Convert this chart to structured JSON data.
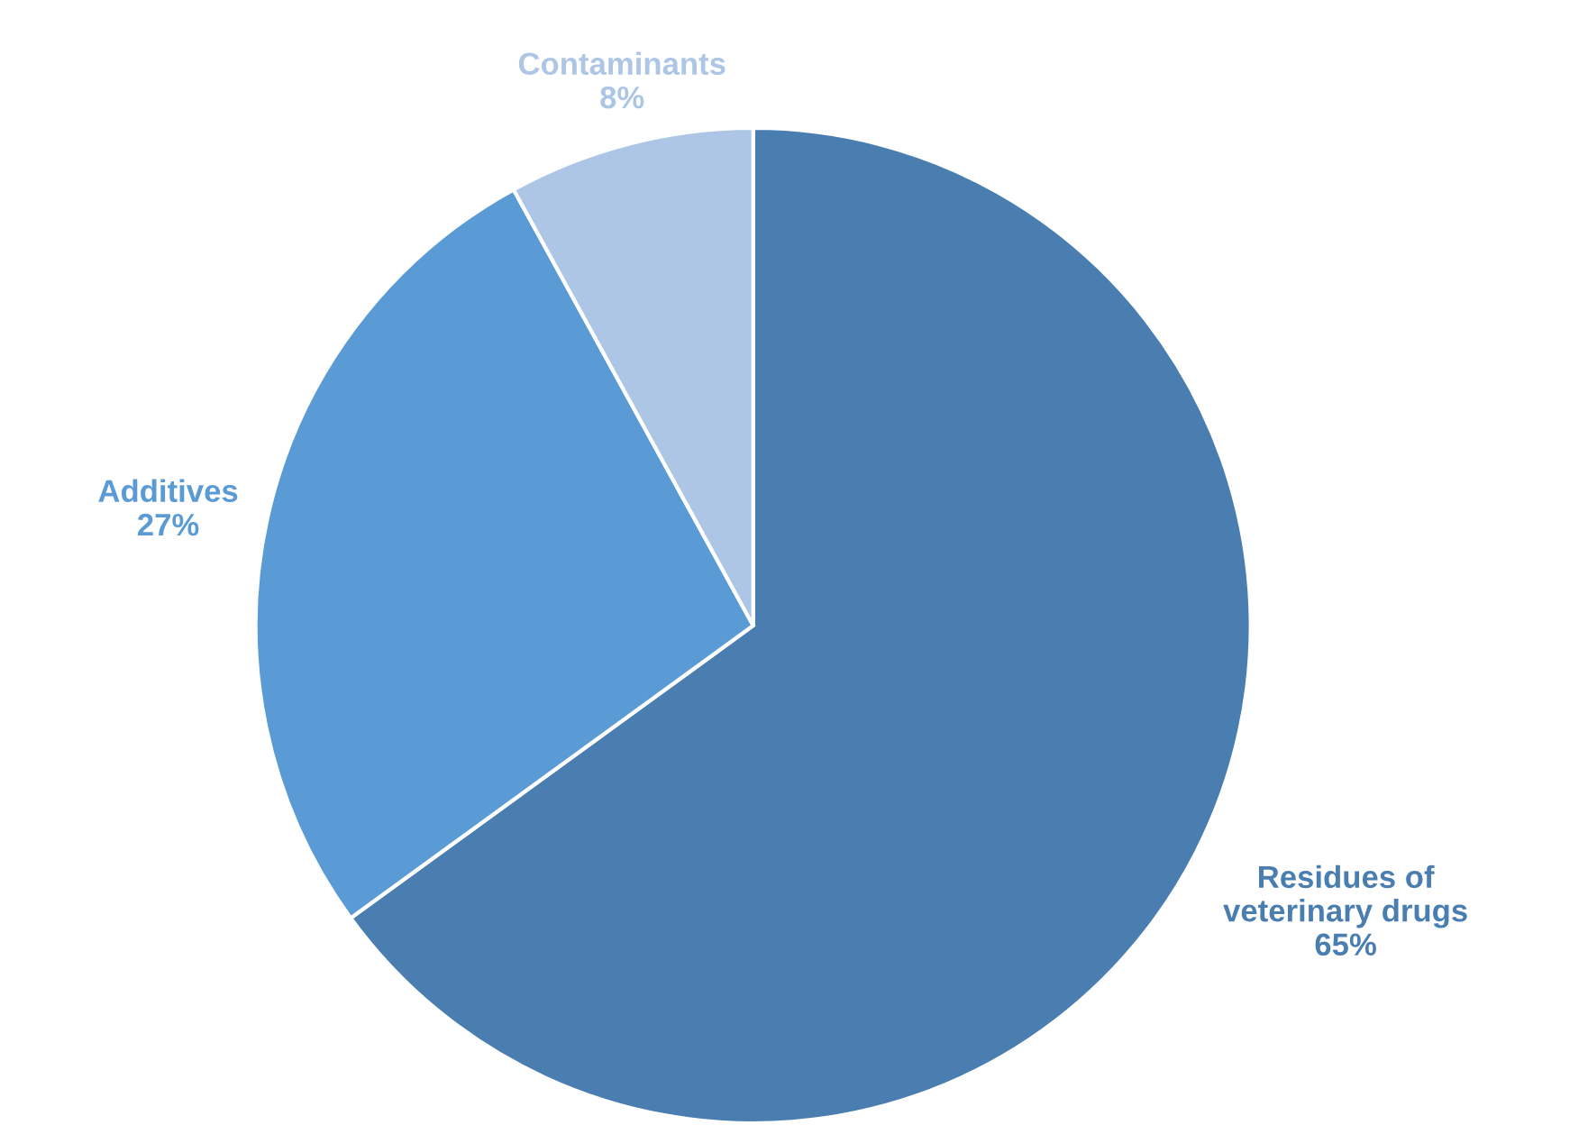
{
  "chart_data": {
    "type": "pie",
    "categories": [
      "Residues of veterinary drugs",
      "Additives",
      "Contaminants"
    ],
    "values": [
      65,
      27,
      8
    ],
    "value_labels": [
      "65%",
      "27%",
      "8%"
    ],
    "colors": [
      "#4a7eb0",
      "#5b9bd5",
      "#adc6e6"
    ]
  }
}
